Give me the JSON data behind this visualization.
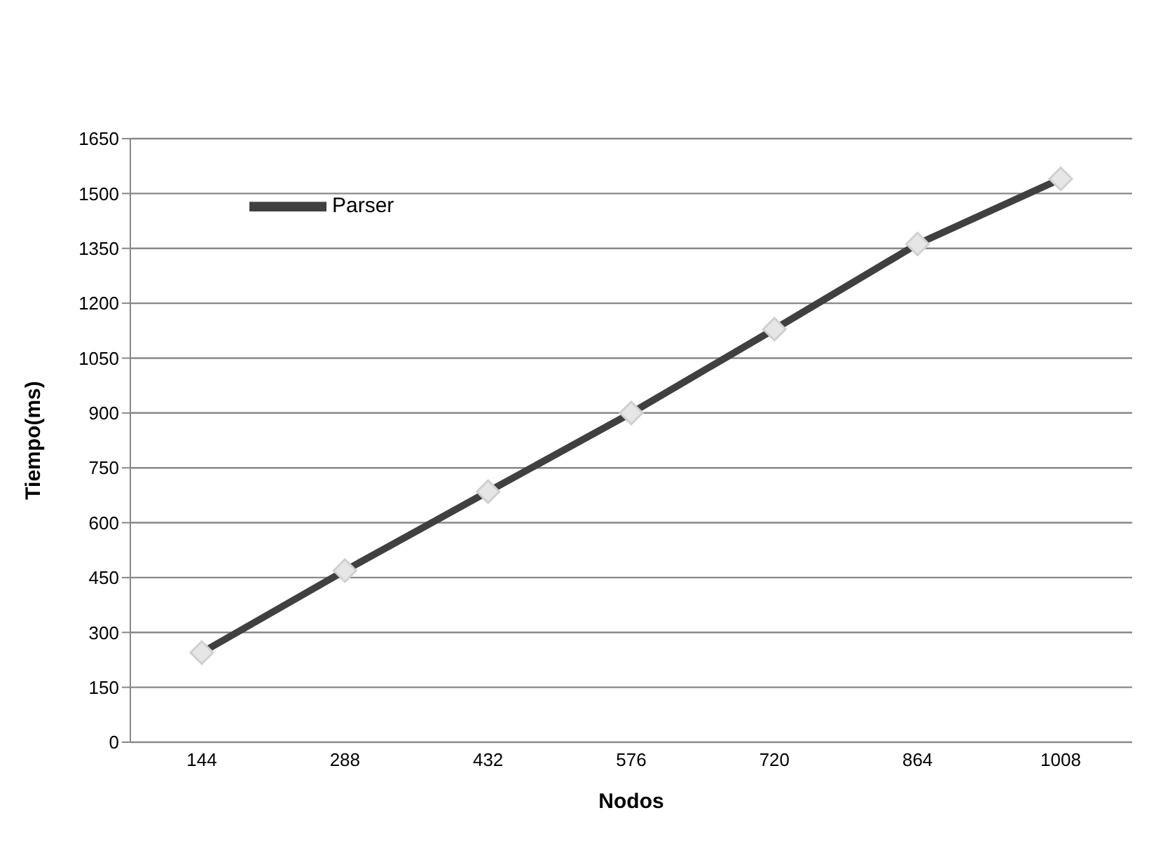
{
  "chart_data": {
    "type": "line",
    "xlabel": "Nodos",
    "ylabel": "Tiempo(ms)",
    "categories": [
      "144",
      "288",
      "432",
      "576",
      "720",
      "864",
      "1008"
    ],
    "series": [
      {
        "name": "Parser",
        "color": "#404040",
        "values": [
          245,
          469,
          685,
          900,
          1129,
          1362,
          1540
        ]
      }
    ],
    "ylim": [
      0,
      1650
    ],
    "yticks": [
      0,
      150,
      300,
      450,
      600,
      750,
      900,
      1050,
      1200,
      1350,
      1500,
      1650
    ],
    "grid": "y",
    "legend": "top left",
    "marker": "diamond"
  }
}
